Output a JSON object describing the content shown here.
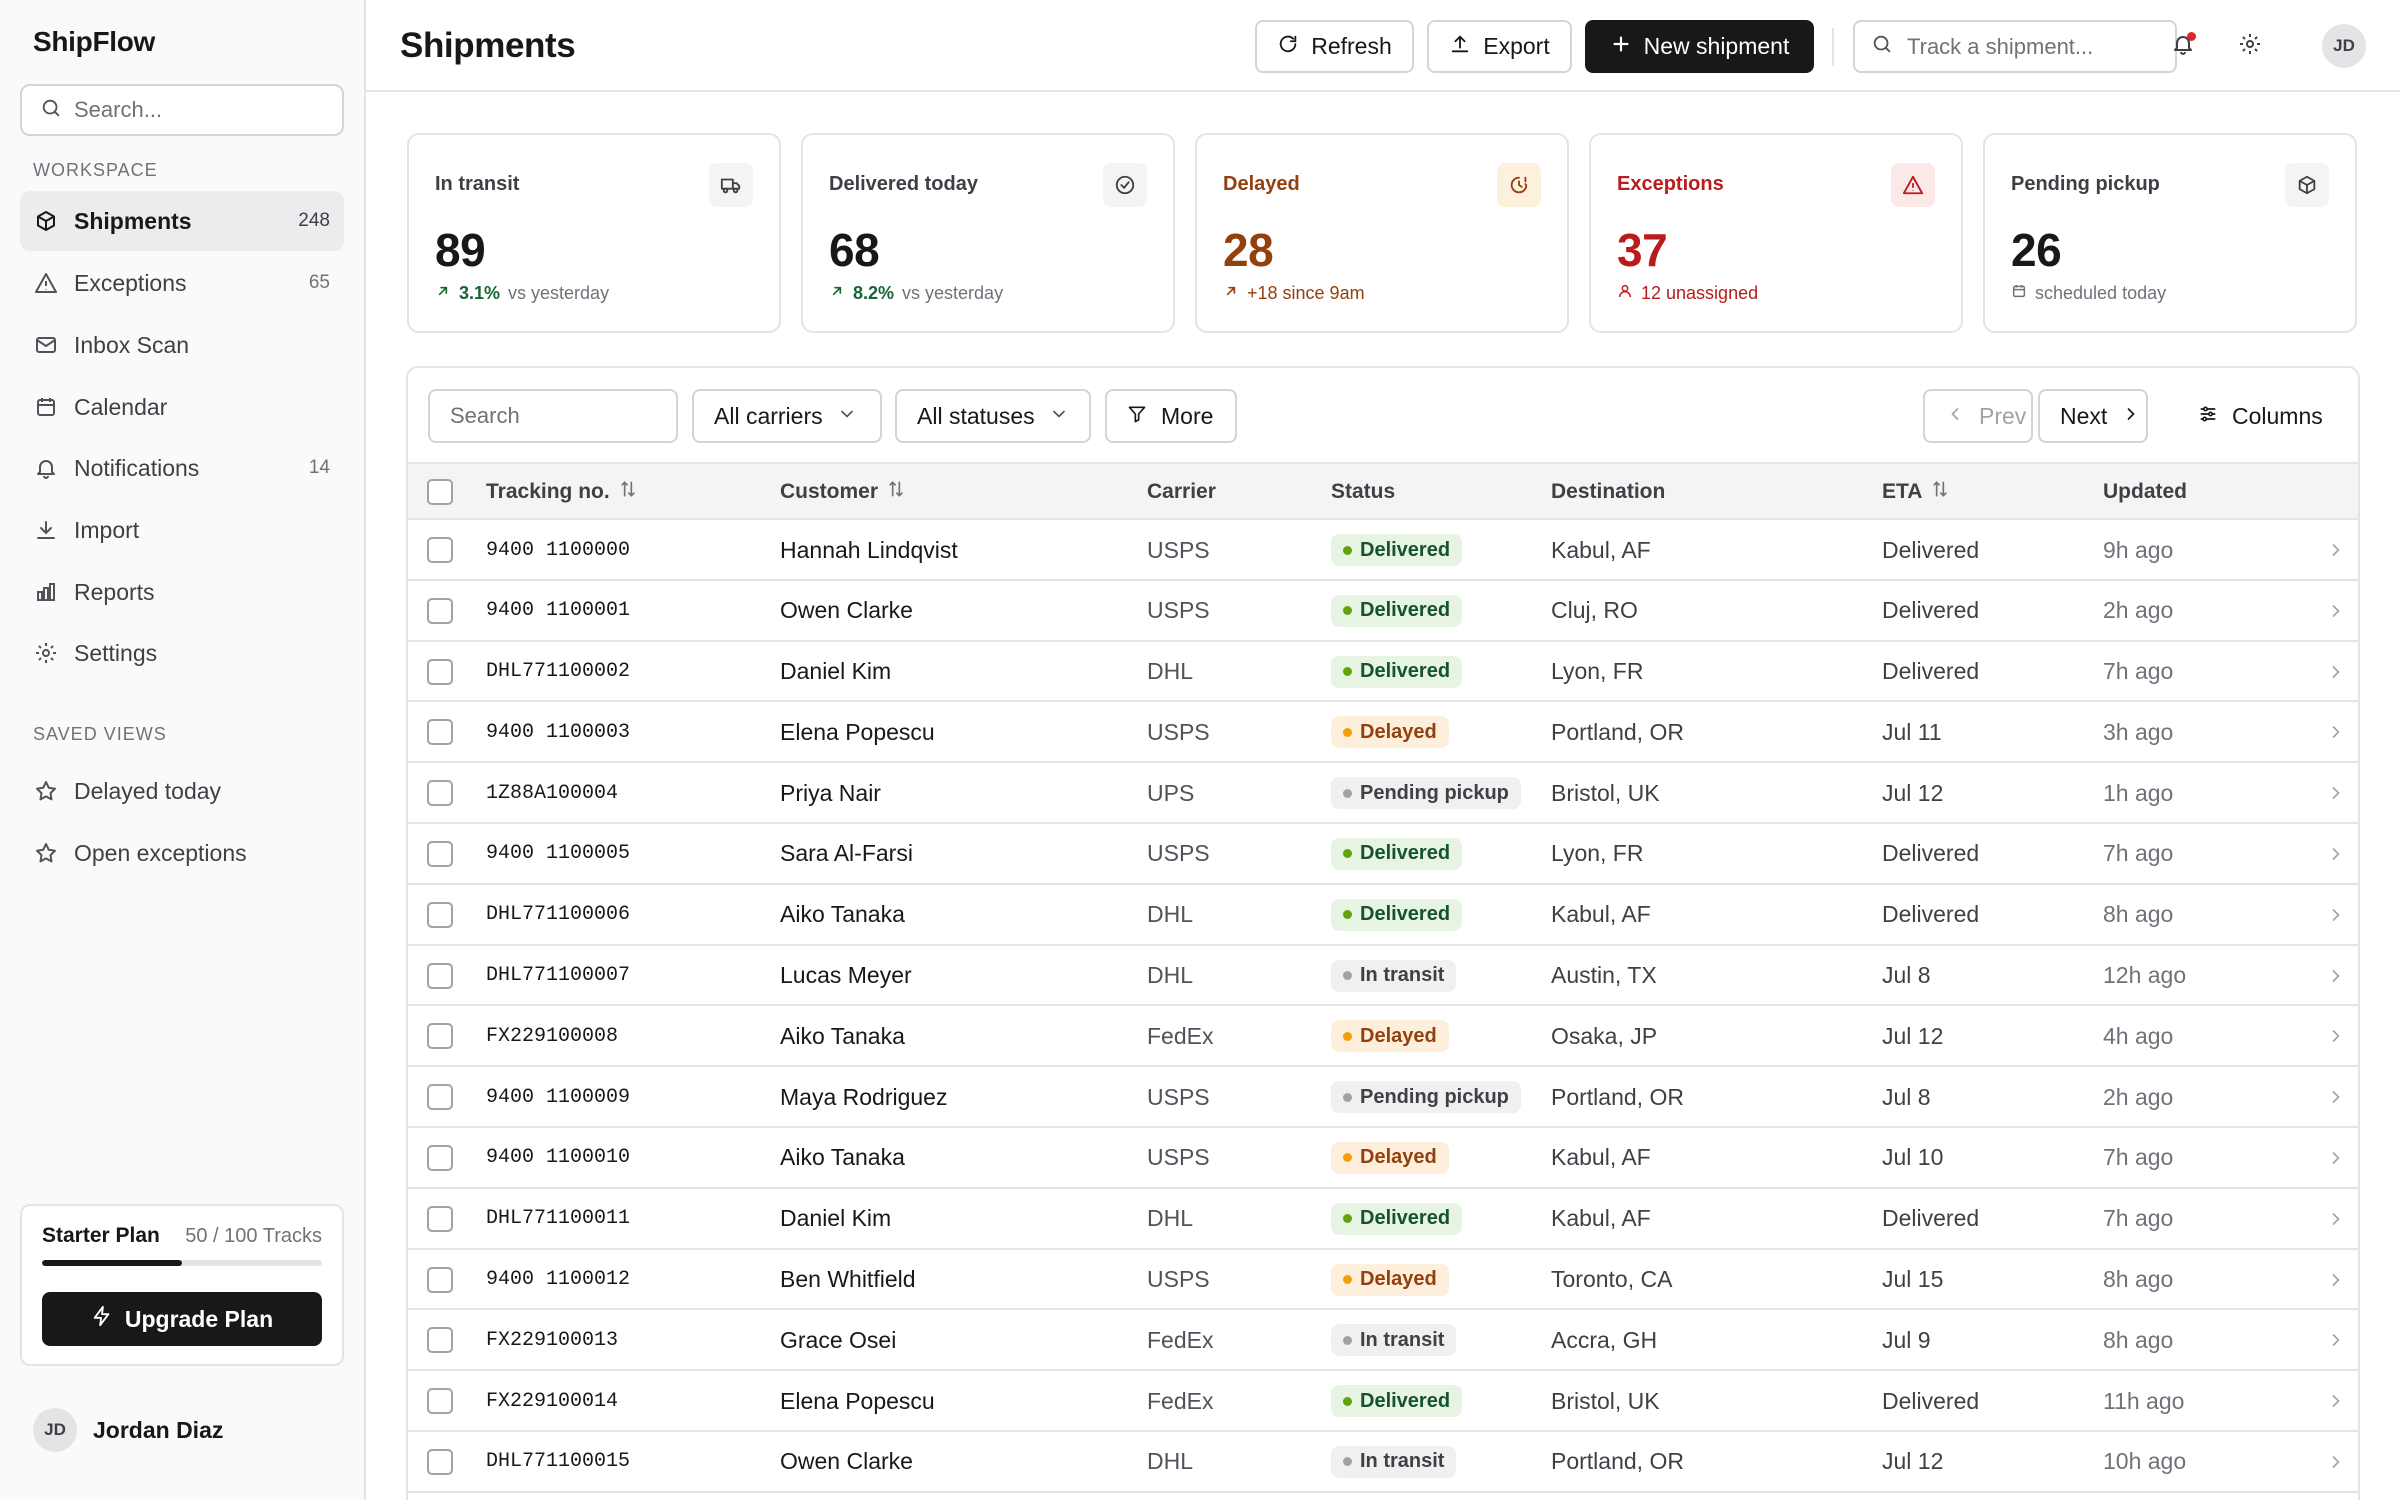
{
  "app": {
    "brand": "ShipFlow"
  },
  "sidebar": {
    "search_placeholder": "Search...",
    "workspace_label": "WORKSPACE",
    "items": [
      {
        "label": "Shipments",
        "count": "248",
        "icon": "box-icon",
        "active": true
      },
      {
        "label": "Exceptions",
        "count": "65",
        "icon": "alert-triangle-icon"
      },
      {
        "label": "Inbox Scan",
        "count": "",
        "icon": "mail-icon"
      },
      {
        "label": "Calendar",
        "count": "",
        "icon": "calendar-icon"
      },
      {
        "label": "Notifications",
        "count": "14",
        "icon": "bell-icon"
      },
      {
        "label": "Import",
        "count": "",
        "icon": "download-icon"
      },
      {
        "label": "Reports",
        "count": "",
        "icon": "bar-chart-icon"
      },
      {
        "label": "Settings",
        "count": "",
        "icon": "gear-icon"
      }
    ],
    "saved_label": "SAVED VIEWS",
    "saved": [
      {
        "label": "Delayed today",
        "icon": "star-icon"
      },
      {
        "label": "Open exceptions",
        "icon": "star-icon"
      }
    ],
    "plan": {
      "name": "Starter Plan",
      "usage": "50 / 100 Tracks",
      "progress": 0.5,
      "upgrade_label": "Upgrade Plan"
    },
    "user": {
      "initials": "JD",
      "name": "Jordan Diaz"
    }
  },
  "header": {
    "title": "Shipments",
    "refresh_label": "Refresh",
    "export_label": "Export",
    "new_label": "New shipment",
    "track_placeholder": "Track a shipment...",
    "avatar": "JD"
  },
  "stats": {
    "in_transit": {
      "label": "In transit",
      "value": "89",
      "delta": "3.1%",
      "note": "vs yesterday",
      "icon": "truck-icon"
    },
    "delivered": {
      "label": "Delivered today",
      "value": "68",
      "delta": "8.2%",
      "note": "vs yesterday",
      "icon": "check-circle-icon"
    },
    "delayed": {
      "label": "Delayed",
      "value": "28",
      "note": "+18 since 9am",
      "icon": "clock-alert-icon"
    },
    "exceptions": {
      "label": "Exceptions",
      "value": "37",
      "note": "12 unassigned",
      "icon": "alert-triangle-icon"
    },
    "pending": {
      "label": "Pending pickup",
      "value": "26",
      "note": "scheduled today",
      "icon": "package-icon"
    }
  },
  "filters": {
    "search_placeholder": "Search",
    "carriers": "All carriers",
    "statuses": "All statuses",
    "more": "More",
    "prev": "Prev",
    "next": "Next",
    "columns": "Columns"
  },
  "table": {
    "columns": [
      "Tracking no.",
      "Customer",
      "Carrier",
      "Status",
      "Destination",
      "ETA",
      "Updated"
    ],
    "rows": [
      {
        "tracking": "9400 1100000",
        "customer": "Hannah Lindqvist",
        "carrier": "USPS",
        "status": "Delivered",
        "status_kind": "delivered",
        "destination": "Kabul, AF",
        "eta": "Delivered",
        "updated": "9h ago"
      },
      {
        "tracking": "9400 1100001",
        "customer": "Owen Clarke",
        "carrier": "USPS",
        "status": "Delivered",
        "status_kind": "delivered",
        "destination": "Cluj, RO",
        "eta": "Delivered",
        "updated": "2h ago"
      },
      {
        "tracking": "DHL771100002",
        "customer": "Daniel Kim",
        "carrier": "DHL",
        "status": "Delivered",
        "status_kind": "delivered",
        "destination": "Lyon, FR",
        "eta": "Delivered",
        "updated": "7h ago"
      },
      {
        "tracking": "9400 1100003",
        "customer": "Elena Popescu",
        "carrier": "USPS",
        "status": "Delayed",
        "status_kind": "delayed",
        "destination": "Portland, OR",
        "eta": "Jul 11",
        "updated": "3h ago"
      },
      {
        "tracking": "1Z88A100004",
        "customer": "Priya Nair",
        "carrier": "UPS",
        "status": "Pending pickup",
        "status_kind": "pending",
        "destination": "Bristol, UK",
        "eta": "Jul 12",
        "updated": "1h ago"
      },
      {
        "tracking": "9400 1100005",
        "customer": "Sara Al-Farsi",
        "carrier": "USPS",
        "status": "Delivered",
        "status_kind": "delivered",
        "destination": "Lyon, FR",
        "eta": "Delivered",
        "updated": "7h ago"
      },
      {
        "tracking": "DHL771100006",
        "customer": "Aiko Tanaka",
        "carrier": "DHL",
        "status": "Delivered",
        "status_kind": "delivered",
        "destination": "Kabul, AF",
        "eta": "Delivered",
        "updated": "8h ago"
      },
      {
        "tracking": "DHL771100007",
        "customer": "Lucas Meyer",
        "carrier": "DHL",
        "status": "In transit",
        "status_kind": "transit",
        "destination": "Austin, TX",
        "eta": "Jul 8",
        "updated": "12h ago"
      },
      {
        "tracking": "FX229100008",
        "customer": "Aiko Tanaka",
        "carrier": "FedEx",
        "status": "Delayed",
        "status_kind": "delayed",
        "destination": "Osaka, JP",
        "eta": "Jul 12",
        "updated": "4h ago"
      },
      {
        "tracking": "9400 1100009",
        "customer": "Maya Rodriguez",
        "carrier": "USPS",
        "status": "Pending pickup",
        "status_kind": "pending",
        "destination": "Portland, OR",
        "eta": "Jul 8",
        "updated": "2h ago"
      },
      {
        "tracking": "9400 1100010",
        "customer": "Aiko Tanaka",
        "carrier": "USPS",
        "status": "Delayed",
        "status_kind": "delayed",
        "destination": "Kabul, AF",
        "eta": "Jul 10",
        "updated": "7h ago"
      },
      {
        "tracking": "DHL771100011",
        "customer": "Daniel Kim",
        "carrier": "DHL",
        "status": "Delivered",
        "status_kind": "delivered",
        "destination": "Kabul, AF",
        "eta": "Delivered",
        "updated": "7h ago"
      },
      {
        "tracking": "9400 1100012",
        "customer": "Ben Whitfield",
        "carrier": "USPS",
        "status": "Delayed",
        "status_kind": "delayed",
        "destination": "Toronto, CA",
        "eta": "Jul 15",
        "updated": "8h ago"
      },
      {
        "tracking": "FX229100013",
        "customer": "Grace Osei",
        "carrier": "FedEx",
        "status": "In transit",
        "status_kind": "transit",
        "destination": "Accra, GH",
        "eta": "Jul 9",
        "updated": "8h ago"
      },
      {
        "tracking": "FX229100014",
        "customer": "Elena Popescu",
        "carrier": "FedEx",
        "status": "Delivered",
        "status_kind": "delivered",
        "destination": "Bristol, UK",
        "eta": "Delivered",
        "updated": "11h ago"
      },
      {
        "tracking": "DHL771100015",
        "customer": "Owen Clarke",
        "carrier": "DHL",
        "status": "In transit",
        "status_kind": "transit",
        "destination": "Portland, OR",
        "eta": "Jul 12",
        "updated": "10h ago"
      }
    ]
  },
  "colors": {
    "accent": "#18181b",
    "delivered": "#65a30d",
    "delayed": "#f59e0b",
    "exception": "#b91c1c",
    "notification_dot": "#dc2626"
  }
}
